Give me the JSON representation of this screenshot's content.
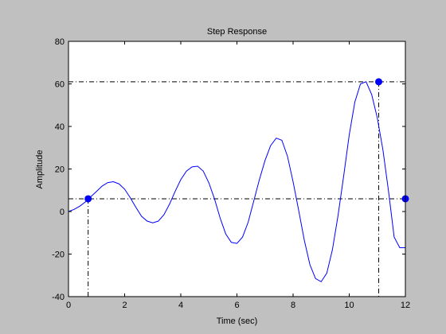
{
  "figure": {
    "background": "#c0c0c0"
  },
  "chart_data": {
    "type": "line",
    "title": "Step Response",
    "xlabel": "Time (sec)",
    "ylabel": "Amplitude",
    "xlim": [
      0,
      12
    ],
    "ylim": [
      -40,
      80
    ],
    "xticks": [
      0,
      2,
      4,
      6,
      8,
      10,
      12
    ],
    "yticks": [
      -40,
      -20,
      0,
      20,
      40,
      60,
      80
    ],
    "grid": false,
    "legend": "none",
    "colors": {
      "line": "#0000ff",
      "marker": "#0000ff",
      "axes_bg": "#ffffff",
      "guides": "#000000"
    },
    "series": [
      {
        "x": [
          0,
          0.2,
          0.4,
          0.6,
          0.8,
          1.0,
          1.2,
          1.4,
          1.6,
          1.8,
          2.0,
          2.2,
          2.4,
          2.6,
          2.8,
          3.0,
          3.2,
          3.4,
          3.6,
          3.8,
          4.0,
          4.2,
          4.4,
          4.6,
          4.8,
          5.0,
          5.2,
          5.4,
          5.6,
          5.8,
          6.0,
          6.2,
          6.4,
          6.6,
          6.8,
          7.0,
          7.2,
          7.4,
          7.6,
          7.8,
          8.0,
          8.2,
          8.4,
          8.6,
          8.8,
          9.0,
          9.2,
          9.4,
          9.6,
          9.8,
          10.0,
          10.2,
          10.4,
          10.6,
          10.8,
          11.0,
          11.2,
          11.4,
          11.6,
          11.8,
          12.0
        ],
        "y": [
          0,
          1,
          2.5,
          4.5,
          7,
          9.5,
          12,
          13.6,
          14,
          13,
          10.5,
          6.5,
          2,
          -2.2,
          -4.5,
          -5.3,
          -4.5,
          -1.5,
          3.5,
          9.5,
          15,
          19,
          21,
          21.3,
          19,
          13.5,
          6,
          -3,
          -10.5,
          -14.5,
          -15,
          -12,
          -5,
          5,
          15,
          24,
          31,
          34.5,
          33.5,
          26,
          14,
          0.5,
          -13.5,
          -25,
          -31.5,
          -33,
          -29,
          -18,
          -2,
          16.5,
          36,
          51.5,
          60,
          61,
          55,
          44,
          29,
          9.5,
          -12,
          -17,
          -17
        ]
      }
    ],
    "markers": [
      {
        "x": 0.7,
        "y": 6
      },
      {
        "x": 11.05,
        "y": 61
      },
      {
        "x": 12,
        "y": 6
      }
    ],
    "hlines": [
      6,
      61
    ],
    "vlines": [
      0,
      0.7,
      11.05
    ]
  }
}
